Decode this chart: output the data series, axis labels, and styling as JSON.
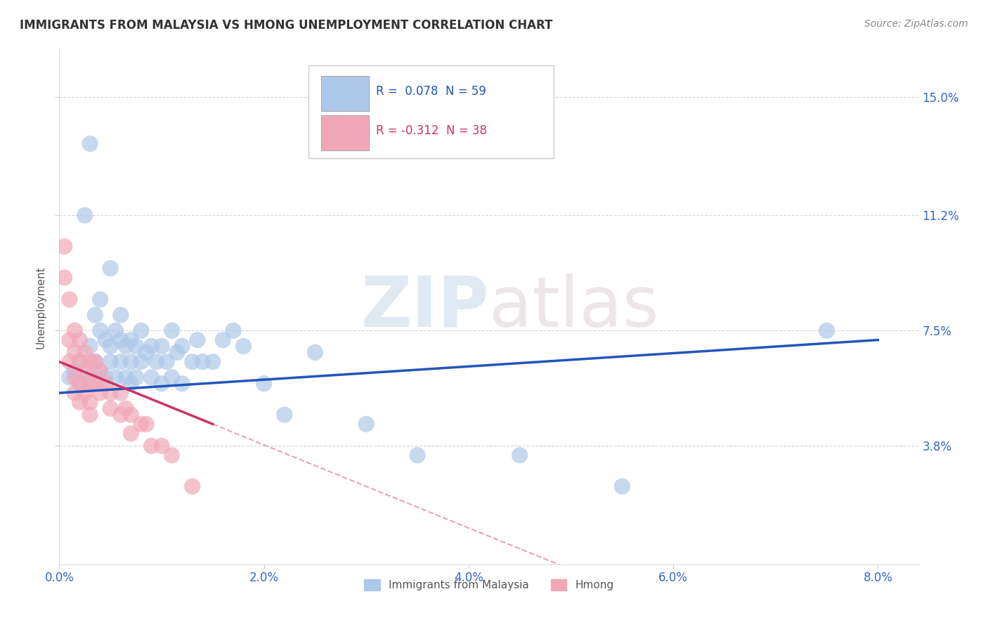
{
  "title": "IMMIGRANTS FROM MALAYSIA VS HMONG UNEMPLOYMENT CORRELATION CHART",
  "source": "Source: ZipAtlas.com",
  "ylabel": "Unemployment",
  "xlabel_vals": [
    0.0,
    2.0,
    4.0,
    6.0,
    8.0
  ],
  "ylabel_vals": [
    3.8,
    7.5,
    11.2,
    15.0
  ],
  "xlim": [
    0.0,
    8.4
  ],
  "ylim": [
    0.0,
    16.5
  ],
  "blue_R": 0.078,
  "blue_N": 59,
  "pink_R": -0.312,
  "pink_N": 38,
  "blue_color": "#adc8e8",
  "blue_line_color": "#2255bb",
  "pink_color": "#f0a8b8",
  "pink_line_color": "#cc3366",
  "background_color": "#ffffff",
  "grid_color": "#cccccc",
  "watermark_zip": "ZIP",
  "watermark_atlas": "atlas",
  "legend_label_blue": "Immigrants from Malaysia",
  "legend_label_pink": "Hmong",
  "blue_x": [
    0.1,
    0.15,
    0.2,
    0.2,
    0.25,
    0.3,
    0.3,
    0.3,
    0.35,
    0.35,
    0.4,
    0.4,
    0.4,
    0.45,
    0.45,
    0.5,
    0.5,
    0.5,
    0.55,
    0.55,
    0.6,
    0.6,
    0.6,
    0.65,
    0.65,
    0.7,
    0.7,
    0.7,
    0.75,
    0.75,
    0.8,
    0.8,
    0.85,
    0.9,
    0.9,
    0.95,
    1.0,
    1.0,
    1.05,
    1.1,
    1.1,
    1.15,
    1.2,
    1.2,
    1.3,
    1.35,
    1.4,
    1.5,
    1.6,
    1.7,
    1.8,
    2.0,
    2.2,
    2.5,
    3.0,
    3.5,
    4.5,
    5.5,
    7.5
  ],
  "blue_y": [
    6.0,
    6.2,
    6.5,
    5.8,
    11.2,
    6.0,
    7.0,
    13.5,
    6.5,
    8.0,
    6.2,
    7.5,
    8.5,
    6.0,
    7.2,
    6.5,
    7.0,
    9.5,
    6.0,
    7.5,
    6.5,
    7.2,
    8.0,
    6.0,
    7.0,
    5.8,
    6.5,
    7.2,
    6.0,
    7.0,
    6.5,
    7.5,
    6.8,
    6.0,
    7.0,
    6.5,
    5.8,
    7.0,
    6.5,
    6.0,
    7.5,
    6.8,
    5.8,
    7.0,
    6.5,
    7.2,
    6.5,
    6.5,
    7.2,
    7.5,
    7.0,
    5.8,
    4.8,
    6.8,
    4.5,
    3.5,
    3.5,
    2.5,
    7.5
  ],
  "pink_x": [
    0.05,
    0.05,
    0.1,
    0.1,
    0.1,
    0.15,
    0.15,
    0.15,
    0.15,
    0.2,
    0.2,
    0.2,
    0.2,
    0.25,
    0.25,
    0.25,
    0.3,
    0.3,
    0.3,
    0.3,
    0.35,
    0.35,
    0.4,
    0.4,
    0.45,
    0.5,
    0.5,
    0.6,
    0.6,
    0.65,
    0.7,
    0.7,
    0.8,
    0.85,
    0.9,
    1.0,
    1.1,
    1.3
  ],
  "pink_y": [
    10.2,
    9.2,
    8.5,
    7.2,
    6.5,
    7.5,
    6.8,
    6.0,
    5.5,
    7.2,
    6.5,
    5.8,
    5.2,
    6.8,
    6.2,
    5.5,
    6.5,
    5.8,
    5.2,
    4.8,
    6.5,
    5.8,
    6.2,
    5.5,
    5.8,
    5.5,
    5.0,
    5.5,
    4.8,
    5.0,
    4.8,
    4.2,
    4.5,
    4.5,
    3.8,
    3.8,
    3.5,
    2.5
  ]
}
